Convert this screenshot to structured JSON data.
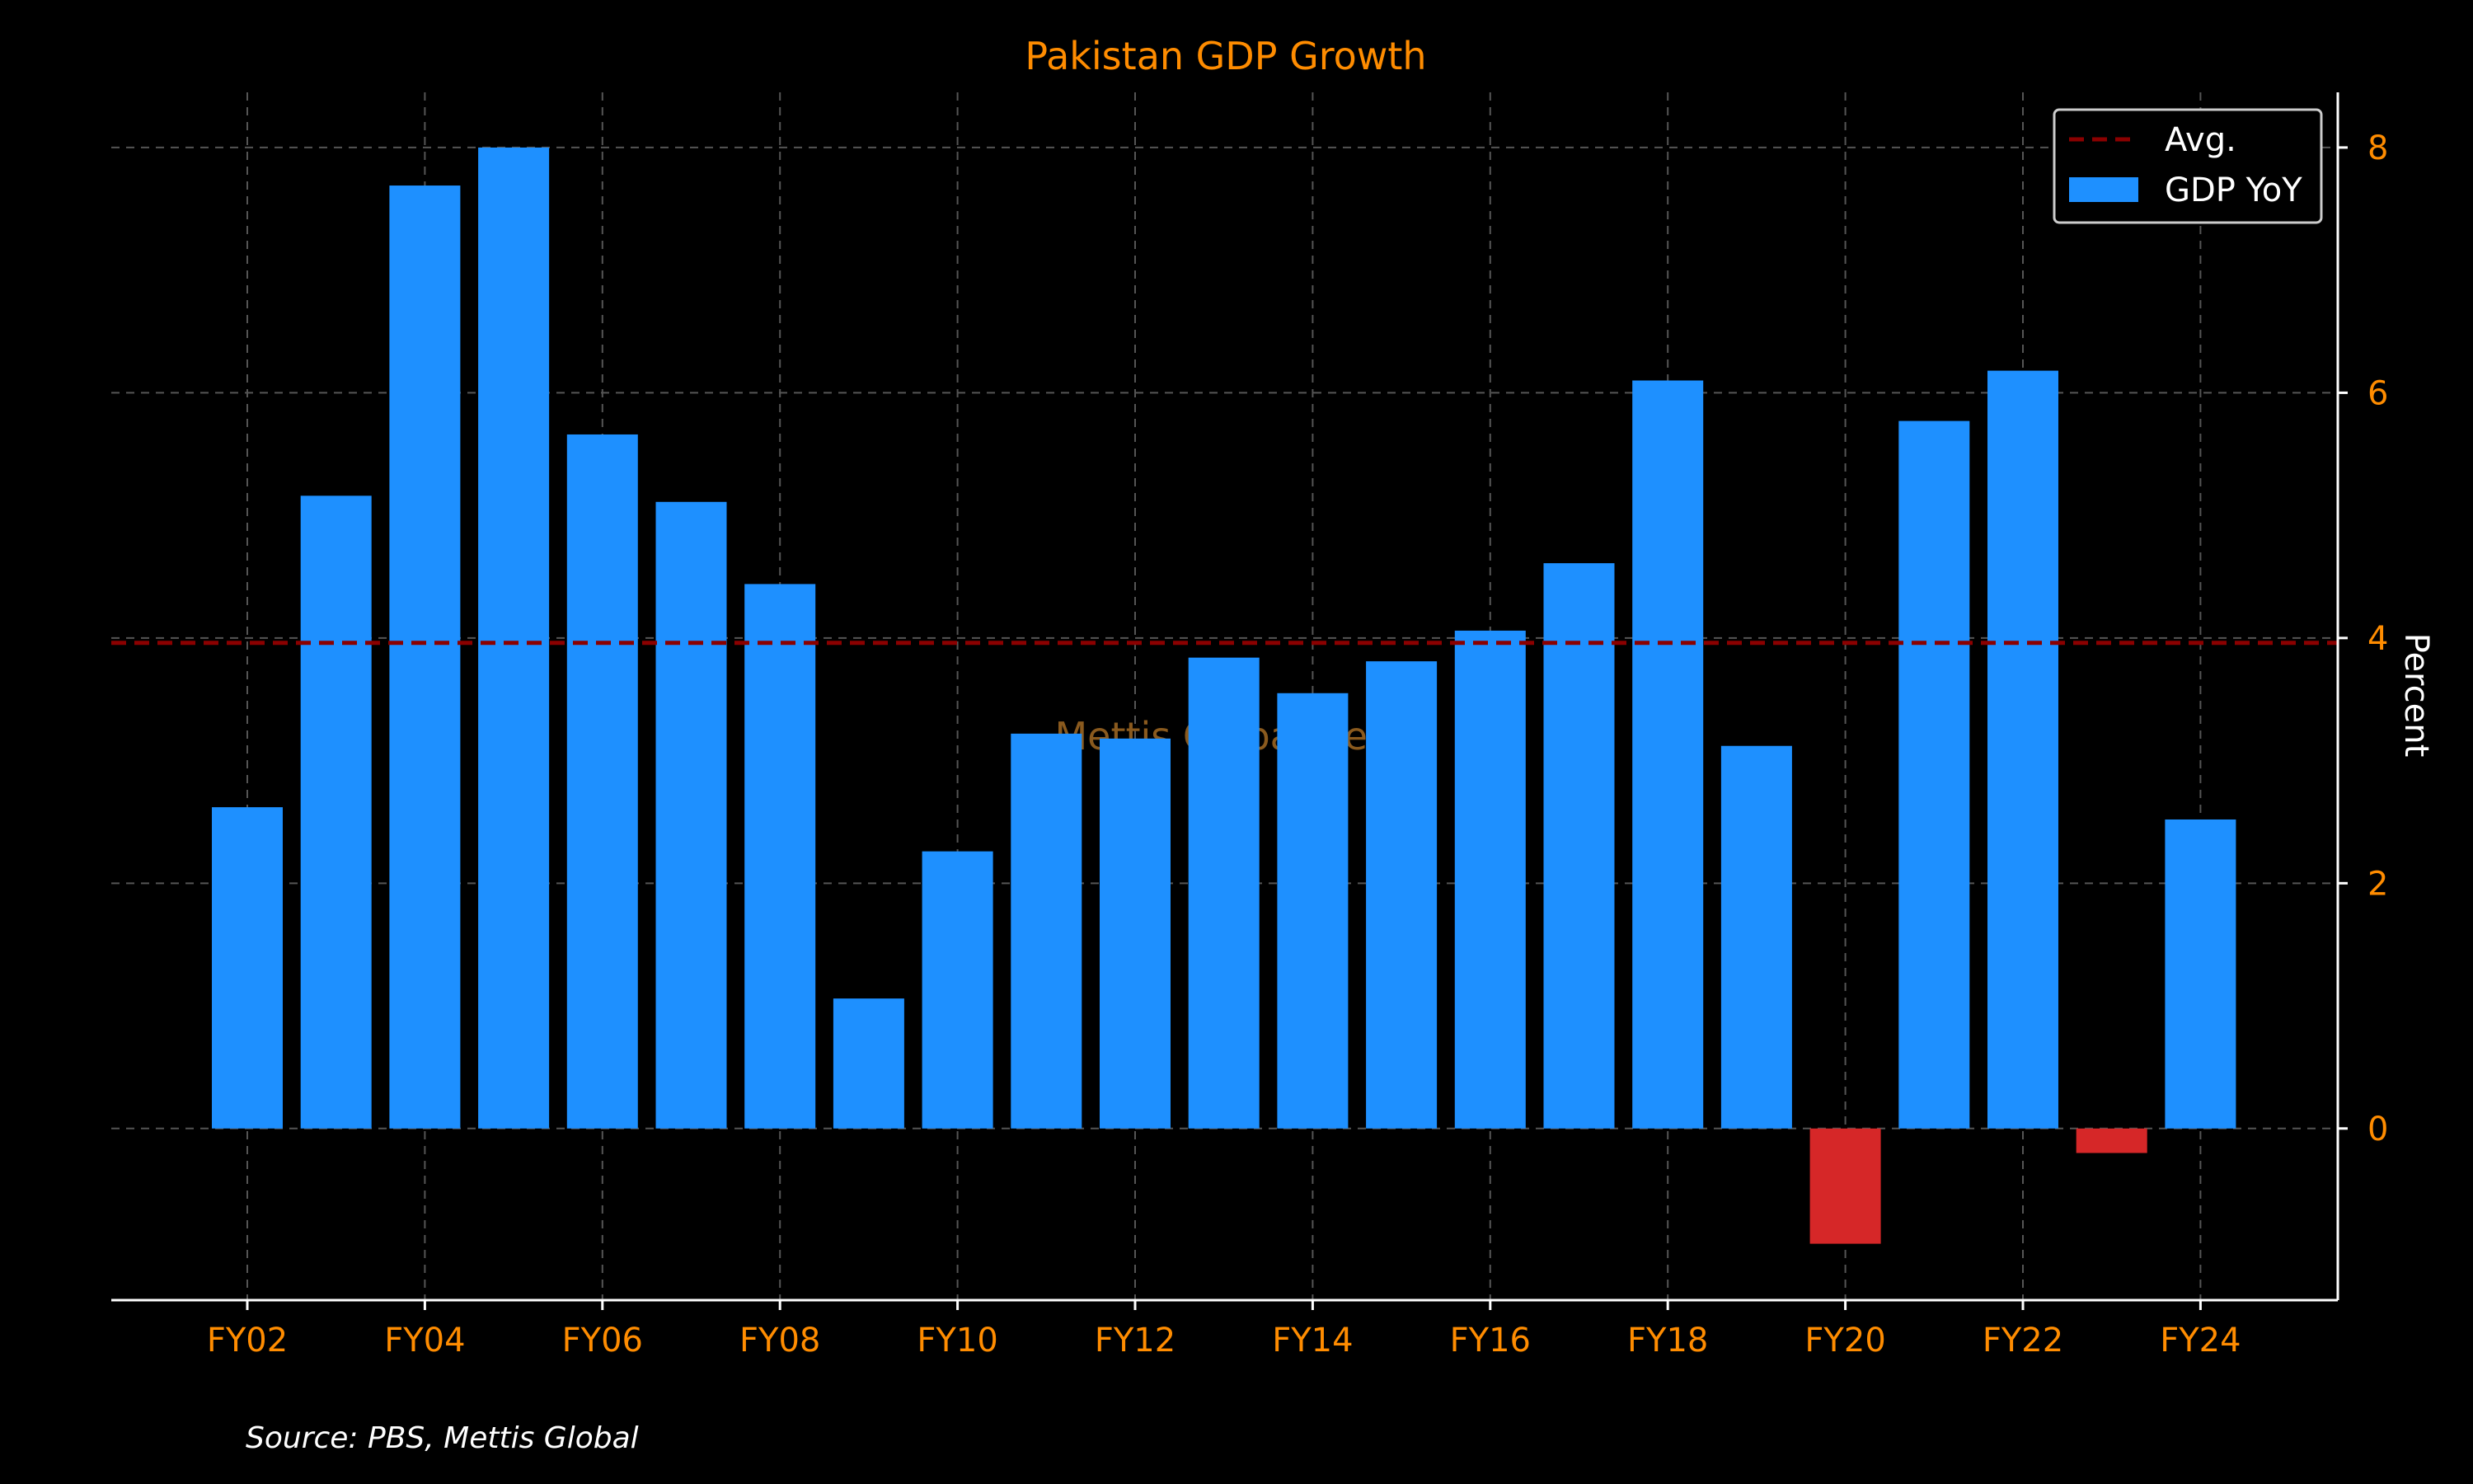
{
  "colors": {
    "background": "#000000",
    "title": "#ff8c00",
    "tick_label": "#ff8c00",
    "axis_label": "#ffffff",
    "positive_bar": "#1e90ff",
    "negative_bar": "#d62728",
    "avg_line": "#8b0000",
    "grid": "#555555",
    "axis": "#ffffff",
    "watermark": "#8a5a1e",
    "source": "#ffffff"
  },
  "watermark": "Mettis Global News",
  "source": "Source: PBS, Mettis Global",
  "chart_data": {
    "type": "bar",
    "title": "Pakistan GDP Growth",
    "xlabel": "",
    "ylabel": "Percent",
    "y_axis_side": "right",
    "grid": true,
    "legend_position": "top-right",
    "ylim": [
      -1.4,
      8.45
    ],
    "yticks": [
      0,
      2,
      4,
      6,
      8
    ],
    "categories": [
      "FY02",
      "FY03",
      "FY04",
      "FY05",
      "FY06",
      "FY07",
      "FY08",
      "FY09",
      "FY10",
      "FY11",
      "FY12",
      "FY13",
      "FY14",
      "FY15",
      "FY16",
      "FY17",
      "FY18",
      "FY19",
      "FY20",
      "FY21",
      "FY22",
      "FY23",
      "FY24"
    ],
    "xtick_labels": [
      "FY02",
      "FY04",
      "FY06",
      "FY08",
      "FY10",
      "FY12",
      "FY14",
      "FY16",
      "FY18",
      "FY20",
      "FY22",
      "FY24"
    ],
    "series": [
      {
        "name": "GDP YoY",
        "values": [
          2.62,
          5.16,
          7.69,
          8.0,
          5.66,
          5.11,
          4.44,
          1.06,
          2.26,
          3.22,
          3.18,
          3.84,
          3.55,
          3.81,
          4.06,
          4.61,
          6.1,
          3.12,
          -0.94,
          5.77,
          6.18,
          -0.2,
          2.52
        ]
      }
    ],
    "average": {
      "name": "Avg.",
      "value": 3.96
    }
  }
}
